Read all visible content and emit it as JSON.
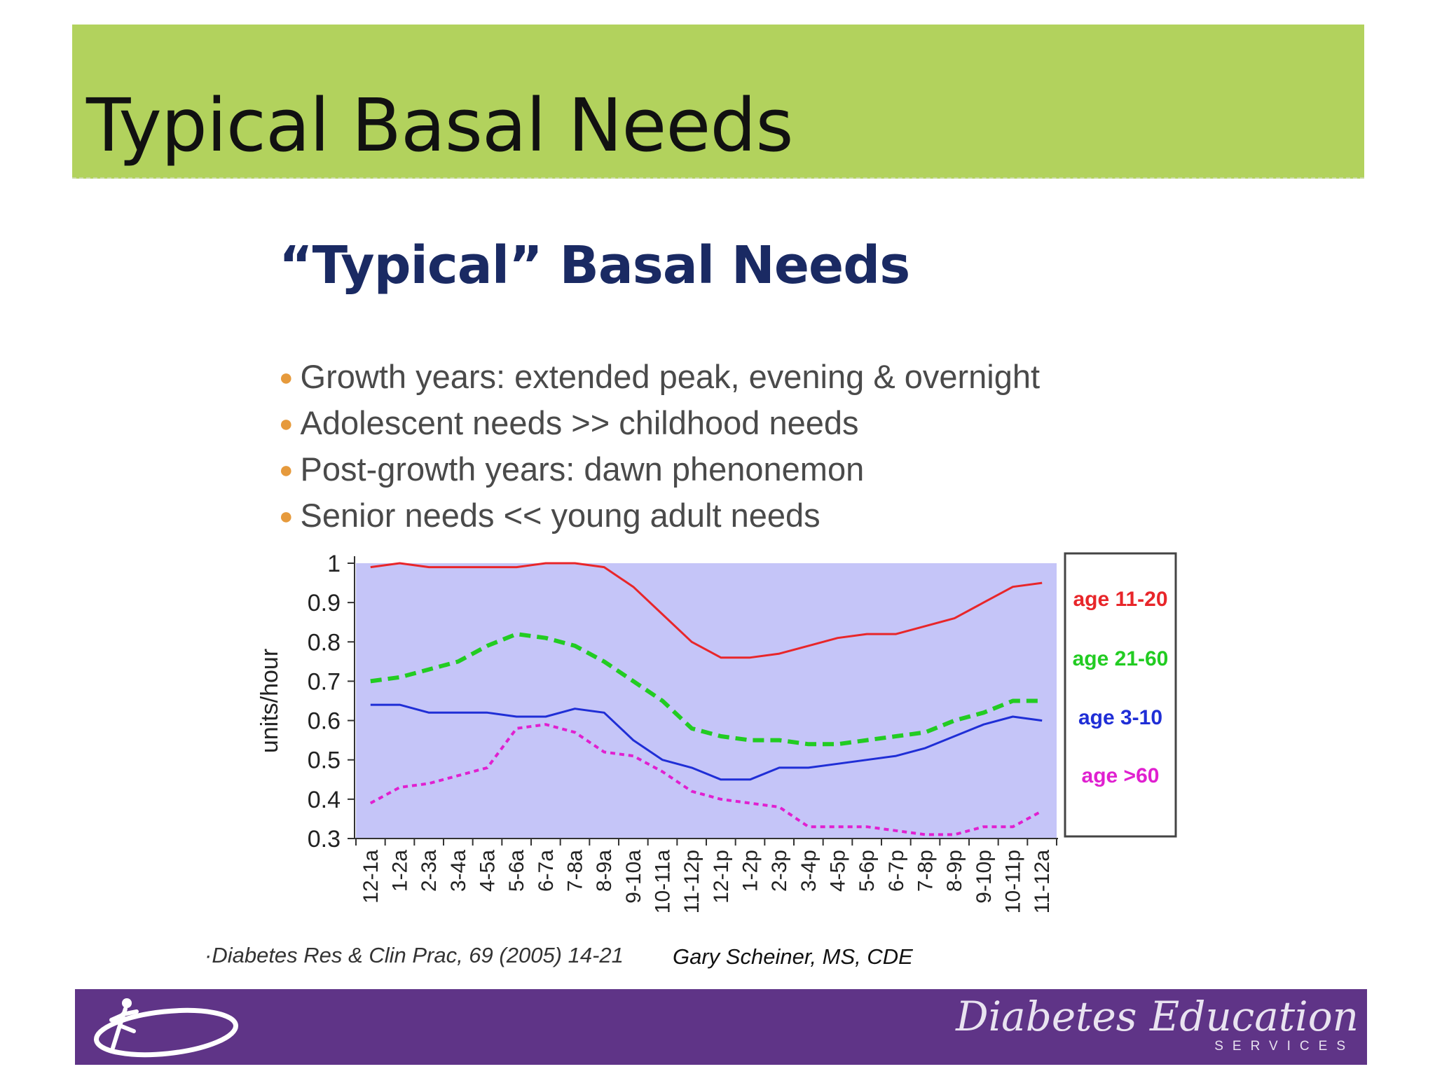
{
  "slide": {
    "title": "Typical Basal Needs",
    "inner_title": "“Typical” Basal Needs",
    "bullets": [
      "Growth years:  extended peak, evening & overnight",
      "Adolescent needs >> childhood needs",
      "Post-growth years:  dawn phenonemon",
      "Senior needs << young adult needs"
    ],
    "citation": "·Diabetes Res & Clin Prac, 69 (2005) 14-21",
    "author": "Gary Scheiner, MS, CDE"
  },
  "footer": {
    "brand_name": "Diabetes Education",
    "brand_sub": "SERVICES",
    "logo_icon": "stick-figure-swoosh-icon",
    "background_color": "#5f3487"
  },
  "colors": {
    "title_bar": "#b2d25d",
    "inner_title": "#1a2a63",
    "bullet_marker": "#e69a3c",
    "plot_background": "#c5c5f8"
  },
  "chart_data": {
    "type": "line",
    "title": "",
    "xlabel": "",
    "ylabel": "units/hour",
    "ylim": [
      0.3,
      1
    ],
    "yticks": [
      "0.3",
      "0.4",
      "0.5",
      "0.6",
      "0.7",
      "0.8",
      "0.9",
      "1"
    ],
    "legend_position": "right",
    "grid": false,
    "categories": [
      "12-1a",
      "1-2a",
      "2-3a",
      "3-4a",
      "4-5a",
      "5-6a",
      "6-7a",
      "7-8a",
      "8-9a",
      "9-10a",
      "10-11a",
      "11-12p",
      "12-1p",
      "1-2p",
      "2-3p",
      "3-4p",
      "4-5p",
      "5-6p",
      "6-7p",
      "7-8p",
      "8-9p",
      "9-10p",
      "10-11p",
      "11-12a"
    ],
    "series": [
      {
        "name": "age 11-20",
        "color": "#e8262a",
        "style": "solid",
        "values": [
          0.99,
          1.0,
          0.99,
          0.99,
          0.99,
          0.99,
          1.0,
          1.0,
          0.99,
          0.94,
          0.87,
          0.8,
          0.76,
          0.76,
          0.77,
          0.79,
          0.81,
          0.82,
          0.82,
          0.84,
          0.86,
          0.9,
          0.94,
          0.95
        ]
      },
      {
        "name": "age 21-60",
        "color": "#22cc22",
        "style": "dashed",
        "values": [
          0.7,
          0.71,
          0.73,
          0.75,
          0.79,
          0.82,
          0.81,
          0.79,
          0.75,
          0.7,
          0.65,
          0.58,
          0.56,
          0.55,
          0.55,
          0.54,
          0.54,
          0.55,
          0.56,
          0.57,
          0.6,
          0.62,
          0.65,
          0.65
        ]
      },
      {
        "name": "age 3-10",
        "color": "#1f2ed6",
        "style": "solid",
        "values": [
          0.64,
          0.64,
          0.62,
          0.62,
          0.62,
          0.61,
          0.61,
          0.63,
          0.62,
          0.55,
          0.5,
          0.48,
          0.45,
          0.45,
          0.48,
          0.48,
          0.49,
          0.5,
          0.51,
          0.53,
          0.56,
          0.59,
          0.61,
          0.6
        ]
      },
      {
        "name": "age >60",
        "color": "#e020d0",
        "style": "dotted",
        "values": [
          0.39,
          0.43,
          0.44,
          0.46,
          0.48,
          0.58,
          0.59,
          0.57,
          0.52,
          0.51,
          0.47,
          0.42,
          0.4,
          0.39,
          0.38,
          0.33,
          0.33,
          0.33,
          0.32,
          0.31,
          0.31,
          0.33,
          0.33,
          0.37
        ]
      }
    ]
  }
}
